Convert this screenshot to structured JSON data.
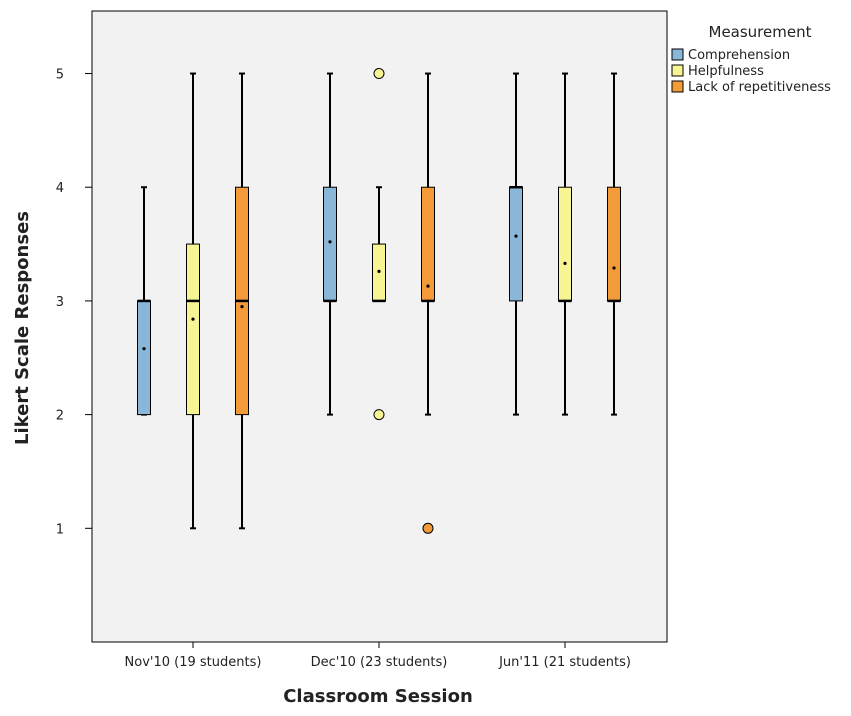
{
  "chart_data": {
    "type": "box",
    "xlabel": "Classroom Session",
    "ylabel": "Likert Scale Responses",
    "ylim": [
      0,
      5.55
    ],
    "yticks": [
      1,
      2,
      3,
      4,
      5
    ],
    "grid": false,
    "legend_position": "top-right",
    "legend_title": "Measurement",
    "categories": [
      "Nov'10 (19 students)",
      "Dec'10 (23 students)",
      "Jun'11 (21 students)"
    ],
    "series": [
      {
        "name": "Comprehension",
        "color": "#8ab7d8",
        "boxes": [
          {
            "min": 2,
            "q1": 2,
            "median": 3,
            "q3": 3,
            "max": 4,
            "mean": 2.58,
            "outliers": []
          },
          {
            "min": 2,
            "q1": 3,
            "median": 3,
            "q3": 4,
            "max": 5,
            "mean": 3.52,
            "outliers": []
          },
          {
            "min": 2,
            "q1": 3,
            "median": 4,
            "q3": 4,
            "max": 5,
            "mean": 3.57,
            "outliers": []
          }
        ]
      },
      {
        "name": "Helpfulness",
        "color": "#f6f493",
        "boxes": [
          {
            "min": 1,
            "q1": 2,
            "median": 3,
            "q3": 3.5,
            "max": 5,
            "mean": 2.84,
            "outliers": []
          },
          {
            "min": 3,
            "q1": 3,
            "median": 3,
            "q3": 3.5,
            "max": 4,
            "mean": 3.26,
            "outliers": [
              5,
              2
            ]
          },
          {
            "min": 2,
            "q1": 3,
            "median": 3,
            "q3": 4,
            "max": 5,
            "mean": 3.33,
            "outliers": []
          }
        ]
      },
      {
        "name": "Lack of repetitiveness",
        "color": "#f39b39",
        "boxes": [
          {
            "min": 1,
            "q1": 2,
            "median": 3,
            "q3": 4,
            "max": 5,
            "mean": 2.95,
            "outliers": []
          },
          {
            "min": 2,
            "q1": 3,
            "median": 3,
            "q3": 4,
            "max": 5,
            "mean": 3.13,
            "outliers": [
              1
            ]
          },
          {
            "min": 2,
            "q1": 3,
            "median": 3,
            "q3": 4,
            "max": 5,
            "mean": 3.29,
            "outliers": []
          }
        ]
      }
    ],
    "colors": {
      "plot_background": "#f2f2f2",
      "frame": "#000000",
      "mean_marker": "#000000"
    }
  }
}
